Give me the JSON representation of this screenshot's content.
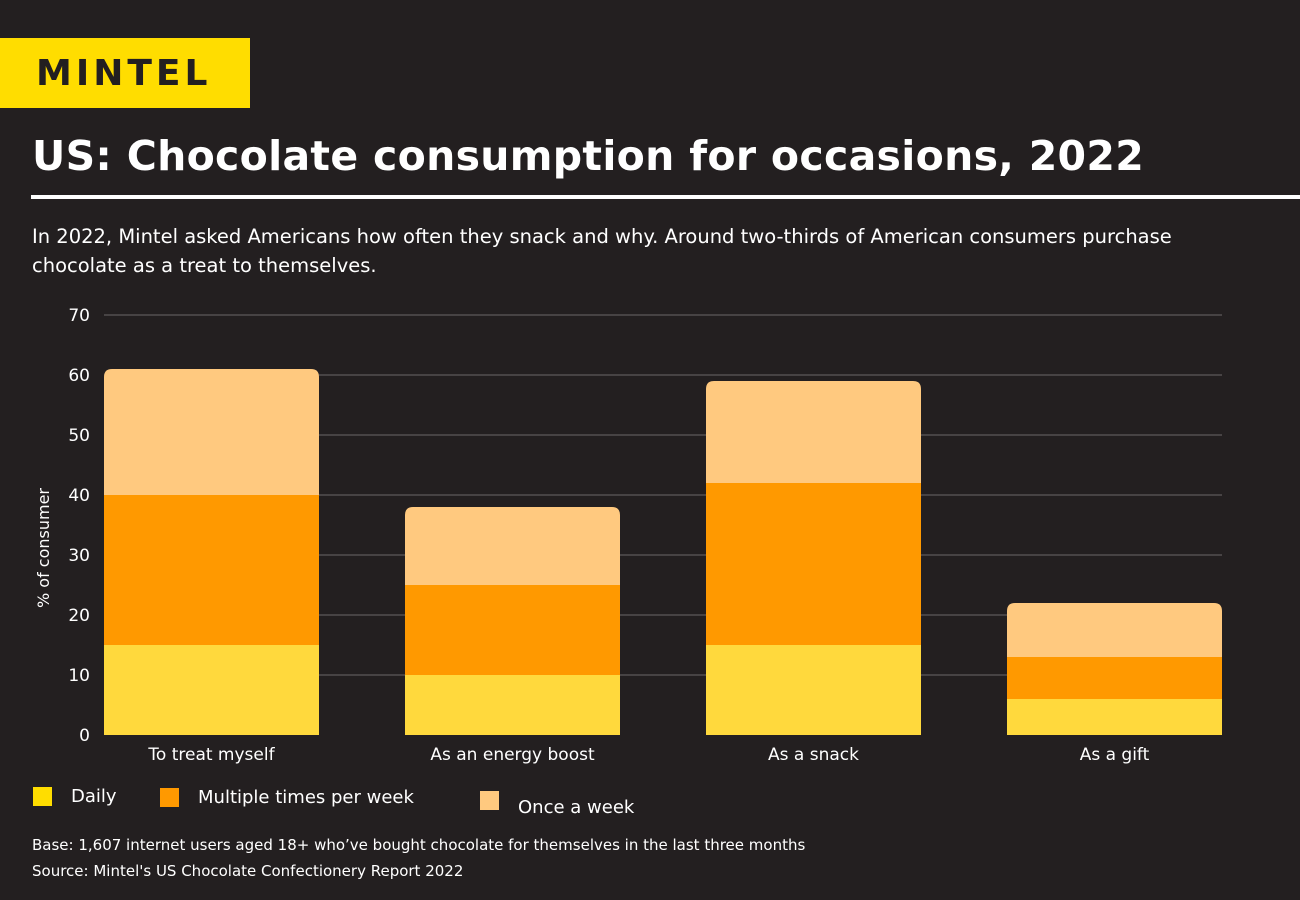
{
  "header": {
    "logo_text": "MINTEL",
    "title": "US: Chocolate consumption for occasions, 2022",
    "subtitle": "In 2022, Mintel asked Americans how often they snack and why. Around two-thirds of American consumers purchase chocolate as a treat to themselves."
  },
  "chart_data": {
    "type": "bar",
    "stacked": true,
    "categories": [
      "To treat myself",
      "As an energy boost",
      "As a snack",
      "As a gift"
    ],
    "series": [
      {
        "name": "Daily",
        "values": [
          15,
          10,
          15,
          6
        ],
        "color": "#ffd93d"
      },
      {
        "name": "Multiple times per week",
        "values": [
          25,
          15,
          27,
          7
        ],
        "color": "#ff9900"
      },
      {
        "name": "Once a week",
        "values": [
          21,
          13,
          17,
          9
        ],
        "color": "#ffc97f"
      }
    ],
    "ylabel": "% of consumer",
    "ylim": [
      0,
      70
    ],
    "yticks": [
      "0",
      "10",
      "20",
      "30",
      "40",
      "50",
      "60",
      "70"
    ],
    "grid": true,
    "legend_placement": "bottom-left"
  },
  "footer": {
    "base": "Base: 1,607 internet users aged 18+ who’ve bought chocolate for themselves in the last three months",
    "source": "Source: Mintel's US Chocolate Confectionery Report 2022"
  },
  "colors": {
    "background": "#231f20",
    "brand": "#ffdd00"
  }
}
